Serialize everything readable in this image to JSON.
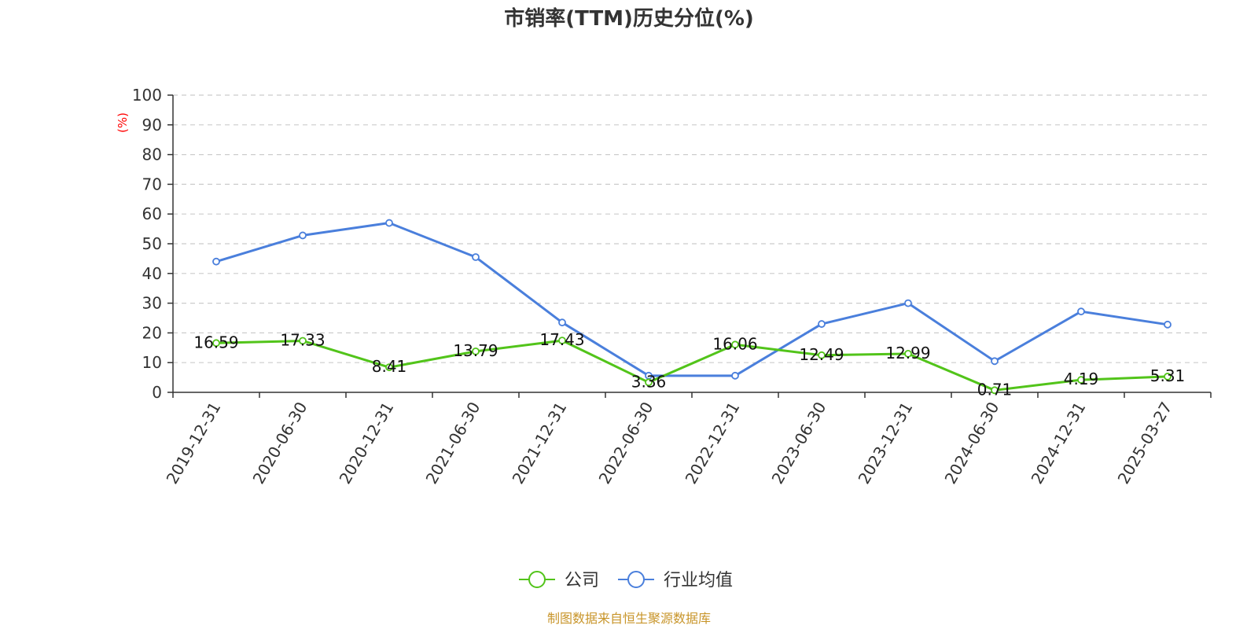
{
  "chart_data": {
    "type": "line",
    "title": "市销率(TTM)历史分位(%)",
    "ylabel": "(%)",
    "xlabel": "",
    "ylim": [
      0,
      100
    ],
    "yticks": [
      0,
      10,
      20,
      30,
      40,
      50,
      60,
      70,
      80,
      90,
      100
    ],
    "grid": true,
    "legend_position": "bottom-center",
    "categories": [
      "2019-12-31",
      "2020-06-30",
      "2020-12-31",
      "2021-06-30",
      "2021-12-31",
      "2022-06-30",
      "2022-12-31",
      "2023-06-30",
      "2023-12-31",
      "2024-06-30",
      "2024-12-31",
      "2025-03-27"
    ],
    "series": [
      {
        "name": "公司",
        "color": "#52c41a",
        "values": [
          16.59,
          17.33,
          8.41,
          13.79,
          17.43,
          3.36,
          16.06,
          12.49,
          12.99,
          0.71,
          4.19,
          5.31
        ],
        "data_labels": [
          "16.59",
          "17.33",
          "8.41",
          "13.79",
          "17.43",
          "3.36",
          "16.06",
          "12.49",
          "12.99",
          "0.71",
          "4.19",
          "5.31"
        ]
      },
      {
        "name": "行业均值",
        "color": "#4a7fdc",
        "values": [
          44.0,
          52.8,
          57.0,
          45.5,
          23.5,
          5.6,
          5.6,
          23.0,
          30.0,
          10.5,
          27.2,
          22.8
        ]
      }
    ]
  },
  "source": "制图数据来自恒生聚源数据库",
  "colors": {
    "axis": "#333333",
    "grid": "#cccccc",
    "unit": "#ff0000",
    "source": "#c8952a"
  }
}
